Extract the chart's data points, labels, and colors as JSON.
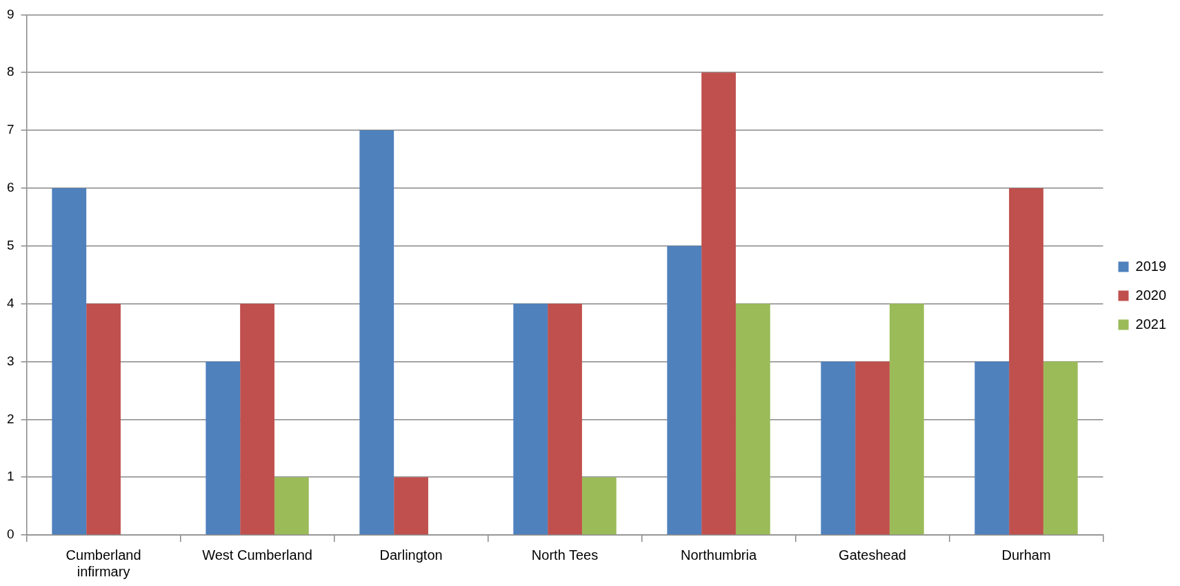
{
  "chart_data": {
    "type": "bar",
    "categories": [
      "Cumberland infirmary",
      "West Cumberland",
      "Darlington",
      "North Tees",
      "Northumbria",
      "Gateshead",
      "Durham"
    ],
    "series": [
      {
        "name": "2019",
        "color": "#4f81bd",
        "values": [
          6,
          3,
          7,
          4,
          5,
          3,
          3
        ]
      },
      {
        "name": "2020",
        "color": "#c0504d",
        "values": [
          4,
          4,
          1,
          4,
          8,
          3,
          6
        ]
      },
      {
        "name": "2021",
        "color": "#9bbb59",
        "values": [
          0,
          1,
          0,
          1,
          4,
          4,
          3
        ]
      }
    ],
    "ylim": [
      0,
      9
    ],
    "yticks": [
      0,
      1,
      2,
      3,
      4,
      5,
      6,
      7,
      8,
      9
    ],
    "grid": "y",
    "legend": "right"
  }
}
